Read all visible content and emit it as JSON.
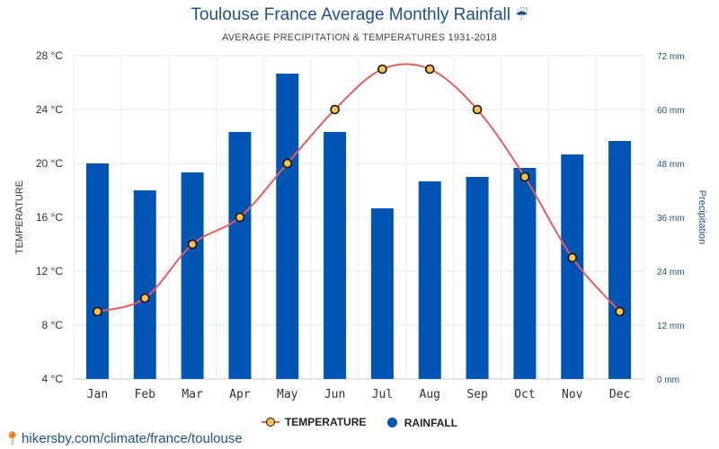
{
  "chart_data": {
    "type": "bar",
    "title": "Toulouse France Average Monthly Rainfall",
    "title_icon": "umbrella-rain-icon",
    "subtitle": "AVERAGE PRECIPITATION & TEMPERATURES 1931-2018",
    "categories": [
      "Jan",
      "Feb",
      "Mar",
      "Apr",
      "May",
      "Jun",
      "Jul",
      "Aug",
      "Sep",
      "Oct",
      "Nov",
      "Dec"
    ],
    "series": [
      {
        "name": "RAINFALL",
        "type": "bar",
        "axis": "right",
        "color": "#0054b4",
        "values": [
          48,
          42,
          46,
          55,
          68,
          55,
          38,
          44,
          45,
          47,
          50,
          53
        ]
      },
      {
        "name": "TEMPERATURE",
        "type": "line",
        "axis": "left",
        "color": "#e85c5c",
        "marker_color": "#fcc14b",
        "values": [
          9,
          10,
          14,
          16,
          20,
          24,
          27,
          27,
          24,
          19,
          13,
          9
        ]
      }
    ],
    "ylabel": "TEMPERATURE",
    "y2label": "Precipitation",
    "ylim": [
      4,
      28
    ],
    "y2lim": [
      0,
      72
    ],
    "yticks": [
      "4 °C",
      "8 °C",
      "12 °C",
      "16 °C",
      "20 °C",
      "24 °C",
      "28 °C"
    ],
    "y2ticks": [
      "0 mm",
      "12 mm",
      "24 mm",
      "36 mm",
      "48 mm",
      "60 mm",
      "72 mm"
    ],
    "grid": true,
    "legend_position": "bottom-center"
  },
  "footer": {
    "icon": "location-pin-icon",
    "text": "hikersby.com/climate/france/toulouse"
  }
}
